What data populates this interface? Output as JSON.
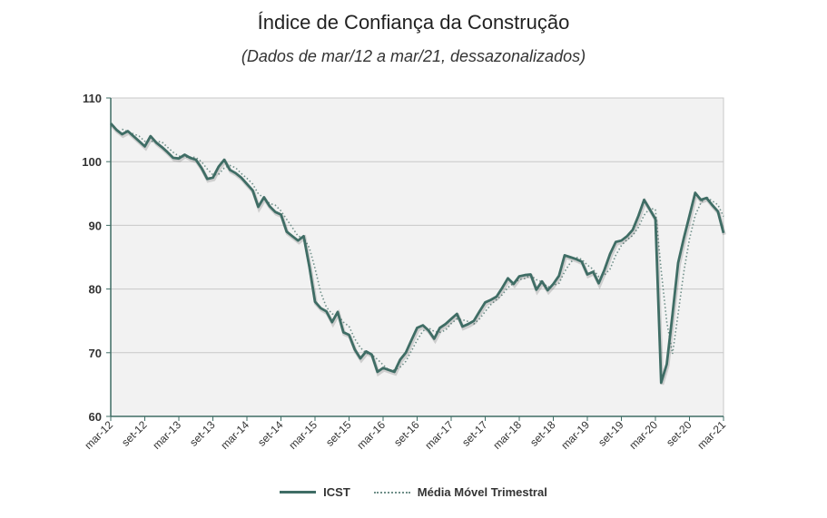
{
  "chart_data": {
    "type": "line",
    "title": "Índice de Confiança da Construção",
    "subtitle": "(Dados de mar/12 a mar/21, dessazonalizados)",
    "xlabel": "",
    "ylabel": "",
    "ylim": [
      60,
      110
    ],
    "yticks": [
      60,
      70,
      80,
      90,
      100,
      110
    ],
    "x_start": "mar-12",
    "x_end": "mar-21",
    "x_frequency": "monthly",
    "xtick_labels": [
      "mar-12",
      "set-12",
      "mar-13",
      "set-13",
      "mar-14",
      "set-14",
      "mar-15",
      "set-15",
      "mar-16",
      "set-16",
      "mar-17",
      "set-17",
      "mar-18",
      "set-18",
      "mar-19",
      "set-19",
      "mar-20",
      "set-20",
      "mar-21"
    ],
    "grid": "horizontal",
    "legend_position": "bottom",
    "colors": {
      "ICST": "#3f6d65",
      "Média Móvel Trimestral": "#6f8f89",
      "plot_bg": "#f2f2f2"
    },
    "series": [
      {
        "name": "ICST",
        "style": "solid",
        "values": [
          106.0,
          105.0,
          104.3,
          104.8,
          104.0,
          103.2,
          102.4,
          104.0,
          103.0,
          102.3,
          101.5,
          100.6,
          100.5,
          101.1,
          100.6,
          100.3,
          99.0,
          97.3,
          97.5,
          99.2,
          100.3,
          98.7,
          98.2,
          97.5,
          96.5,
          95.5,
          92.9,
          94.4,
          93.0,
          92.1,
          91.7,
          89.0,
          88.3,
          87.6,
          88.3,
          83.5,
          78.0,
          77.0,
          76.5,
          74.8,
          76.4,
          73.2,
          72.8,
          70.5,
          69.1,
          70.2,
          69.7,
          67.0,
          67.6,
          67.3,
          67.0,
          68.9,
          70.0,
          72.0,
          73.9,
          74.3,
          73.5,
          72.2,
          73.9,
          74.5,
          75.3,
          76.1,
          74.1,
          74.5,
          75.0,
          76.5,
          77.9,
          78.3,
          78.8,
          80.2,
          81.7,
          80.8,
          82.0,
          82.2,
          82.3,
          79.9,
          81.2,
          79.8,
          80.8,
          82.1,
          85.3,
          85.0,
          84.7,
          84.3,
          82.3,
          82.7,
          80.9,
          83.0,
          85.5,
          87.4,
          87.6,
          88.3,
          89.3,
          91.5,
          94.0,
          92.5,
          91.0,
          65.3,
          68.2,
          76.0,
          84.1,
          88.0,
          91.5,
          95.1,
          94.0,
          94.3,
          93.2,
          92.2,
          88.8
        ]
      },
      {
        "name": "Média Móvel Trimestral",
        "style": "dotted",
        "window": 3
      }
    ]
  }
}
